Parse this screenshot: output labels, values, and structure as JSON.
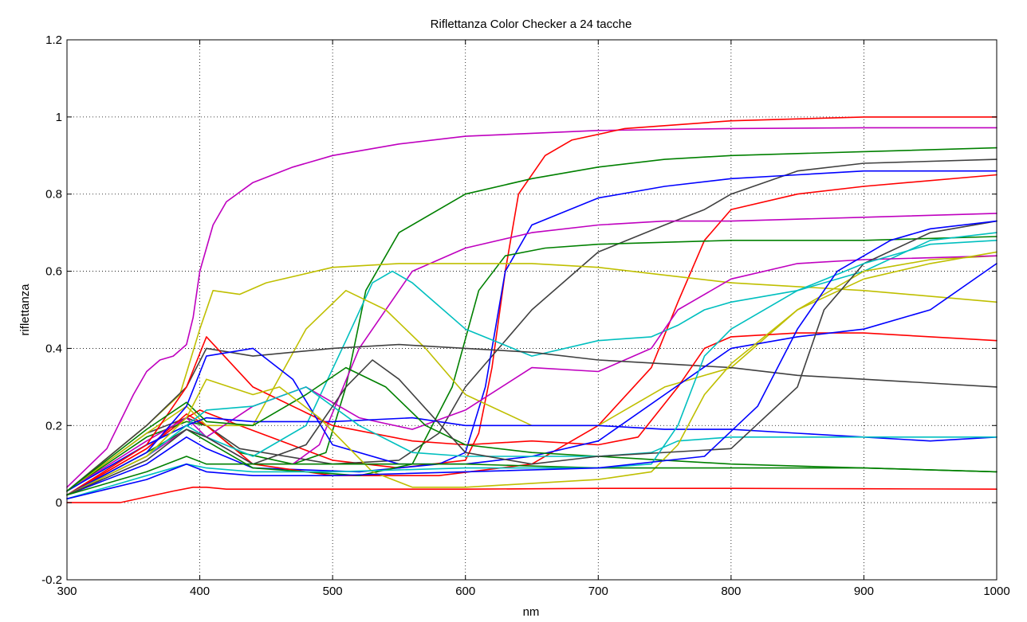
{
  "chart_data": {
    "type": "line",
    "title": "Riflettanza Color Checker a 24 tacche",
    "xlabel": "nm",
    "ylabel": "riflettanza",
    "xlim": [
      300,
      1000
    ],
    "ylim": [
      -0.2,
      1.2
    ],
    "xticks": [
      300,
      400,
      500,
      600,
      700,
      800,
      900,
      1000
    ],
    "yticks": [
      -0.2,
      0,
      0.2,
      0.4,
      0.6,
      0.8,
      1,
      1.2
    ],
    "xtick_labels": [
      "300",
      "400",
      "500",
      "600",
      "700",
      "800",
      "900",
      "1000"
    ],
    "ytick_labels": [
      "-0.2",
      "0",
      "0.2",
      "0.4",
      "0.6",
      "0.8",
      "1",
      "1.2"
    ],
    "grid": true,
    "legend": "none",
    "series": [
      {
        "color": "#bf00bf",
        "x": [
          300,
          330,
          350,
          360,
          370,
          380,
          390,
          395,
          400,
          410,
          420,
          440,
          470,
          500,
          550,
          600,
          700,
          800,
          900,
          1000
        ],
        "y": [
          0.04,
          0.14,
          0.28,
          0.34,
          0.37,
          0.38,
          0.41,
          0.48,
          0.6,
          0.72,
          0.78,
          0.83,
          0.87,
          0.9,
          0.93,
          0.95,
          0.965,
          0.97,
          0.972,
          0.972
        ]
      },
      {
        "color": "#ff0000",
        "x": [
          300,
          360,
          390,
          400,
          430,
          500,
          550,
          600,
          610,
          620,
          630,
          640,
          660,
          680,
          720,
          800,
          900,
          1000
        ],
        "y": [
          0.02,
          0.14,
          0.22,
          0.24,
          0.2,
          0.11,
          0.09,
          0.11,
          0.18,
          0.35,
          0.6,
          0.8,
          0.9,
          0.94,
          0.97,
          0.99,
          1.0,
          1.0
        ]
      },
      {
        "color": "#008000",
        "x": [
          300,
          360,
          390,
          405,
          430,
          470,
          495,
          510,
          525,
          550,
          600,
          650,
          700,
          750,
          800,
          900,
          1000
        ],
        "y": [
          0.03,
          0.17,
          0.21,
          0.2,
          0.13,
          0.1,
          0.13,
          0.3,
          0.55,
          0.7,
          0.8,
          0.84,
          0.87,
          0.89,
          0.9,
          0.91,
          0.92
        ]
      },
      {
        "color": "#404040",
        "x": [
          300,
          360,
          390,
          405,
          430,
          500,
          550,
          580,
          600,
          650,
          700,
          750,
          780,
          800,
          850,
          900,
          1000
        ],
        "y": [
          0.03,
          0.18,
          0.22,
          0.2,
          0.14,
          0.1,
          0.11,
          0.18,
          0.3,
          0.5,
          0.65,
          0.72,
          0.76,
          0.8,
          0.86,
          0.88,
          0.89
        ]
      },
      {
        "color": "#0000ff",
        "x": [
          300,
          360,
          390,
          405,
          440,
          520,
          580,
          600,
          615,
          630,
          650,
          700,
          750,
          800,
          850,
          900,
          1000
        ],
        "y": [
          0.02,
          0.1,
          0.17,
          0.14,
          0.09,
          0.08,
          0.1,
          0.13,
          0.3,
          0.6,
          0.72,
          0.79,
          0.82,
          0.84,
          0.85,
          0.86,
          0.86
        ]
      },
      {
        "color": "#ff0000",
        "x": [
          300,
          360,
          390,
          405,
          440,
          500,
          580,
          650,
          700,
          740,
          760,
          780,
          800,
          850,
          900,
          1000
        ],
        "y": [
          0.02,
          0.14,
          0.23,
          0.2,
          0.1,
          0.07,
          0.07,
          0.1,
          0.2,
          0.35,
          0.52,
          0.68,
          0.76,
          0.8,
          0.82,
          0.85
        ]
      },
      {
        "color": "#bf00bf",
        "x": [
          300,
          360,
          390,
          405,
          440,
          470,
          490,
          520,
          560,
          600,
          650,
          700,
          750,
          800,
          900,
          1000
        ],
        "y": [
          0.03,
          0.16,
          0.22,
          0.17,
          0.1,
          0.1,
          0.15,
          0.4,
          0.6,
          0.66,
          0.7,
          0.72,
          0.73,
          0.73,
          0.74,
          0.75
        ]
      },
      {
        "color": "#008000",
        "x": [
          300,
          360,
          390,
          405,
          440,
          520,
          560,
          590,
          610,
          630,
          660,
          700,
          800,
          900,
          1000
        ],
        "y": [
          0.02,
          0.13,
          0.19,
          0.16,
          0.09,
          0.07,
          0.1,
          0.3,
          0.55,
          0.64,
          0.66,
          0.67,
          0.68,
          0.68,
          0.69
        ]
      },
      {
        "color": "#bfbf00",
        "x": [
          300,
          360,
          385,
          400,
          410,
          430,
          450,
          500,
          550,
          600,
          650,
          700,
          750,
          800,
          900,
          1000
        ],
        "y": [
          0.03,
          0.2,
          0.28,
          0.45,
          0.55,
          0.54,
          0.57,
          0.61,
          0.62,
          0.62,
          0.62,
          0.61,
          0.59,
          0.57,
          0.55,
          0.52
        ]
      },
      {
        "color": "#00bfbf",
        "x": [
          300,
          360,
          390,
          405,
          440,
          480,
          510,
          530,
          545,
          560,
          600,
          650,
          700,
          740,
          760,
          780,
          800,
          850,
          900,
          950,
          1000
        ],
        "y": [
          0.03,
          0.15,
          0.2,
          0.17,
          0.12,
          0.2,
          0.42,
          0.57,
          0.6,
          0.57,
          0.45,
          0.38,
          0.42,
          0.43,
          0.46,
          0.5,
          0.52,
          0.55,
          0.6,
          0.68,
          0.7
        ]
      },
      {
        "color": "#bfbf00",
        "x": [
          300,
          360,
          390,
          405,
          440,
          480,
          510,
          540,
          570,
          600,
          650,
          700,
          750,
          800,
          850,
          900,
          950,
          1000
        ],
        "y": [
          0.03,
          0.18,
          0.25,
          0.2,
          0.2,
          0.45,
          0.55,
          0.5,
          0.4,
          0.28,
          0.2,
          0.2,
          0.3,
          0.35,
          0.5,
          0.6,
          0.63,
          0.64
        ]
      },
      {
        "color": "#bf00bf",
        "x": [
          300,
          360,
          390,
          405,
          440,
          480,
          520,
          560,
          600,
          650,
          700,
          740,
          760,
          800,
          850,
          900,
          1000
        ],
        "y": [
          0.02,
          0.12,
          0.19,
          0.17,
          0.25,
          0.3,
          0.22,
          0.19,
          0.24,
          0.35,
          0.34,
          0.4,
          0.5,
          0.58,
          0.62,
          0.63,
          0.64
        ]
      },
      {
        "color": "#0000ff",
        "x": [
          300,
          360,
          390,
          405,
          440,
          500,
          560,
          600,
          650,
          700,
          750,
          800,
          850,
          900,
          950,
          1000
        ],
        "y": [
          0.03,
          0.15,
          0.2,
          0.22,
          0.21,
          0.21,
          0.22,
          0.2,
          0.2,
          0.2,
          0.19,
          0.19,
          0.18,
          0.17,
          0.16,
          0.17
        ]
      },
      {
        "color": "#404040",
        "x": [
          300,
          360,
          390,
          405,
          440,
          500,
          550,
          600,
          650,
          700,
          750,
          800,
          850,
          900,
          950,
          1000
        ],
        "y": [
          0.03,
          0.2,
          0.3,
          0.4,
          0.38,
          0.4,
          0.41,
          0.4,
          0.39,
          0.37,
          0.36,
          0.35,
          0.33,
          0.32,
          0.31,
          0.3
        ]
      },
      {
        "color": "#ff0000",
        "x": [
          300,
          360,
          390,
          405,
          440,
          500,
          560,
          600,
          650,
          700,
          730,
          760,
          780,
          800,
          850,
          900,
          1000
        ],
        "y": [
          0.02,
          0.15,
          0.3,
          0.43,
          0.3,
          0.2,
          0.16,
          0.15,
          0.16,
          0.15,
          0.17,
          0.3,
          0.4,
          0.43,
          0.44,
          0.44,
          0.42
        ]
      },
      {
        "color": "#0000ff",
        "x": [
          300,
          360,
          390,
          405,
          440,
          470,
          500,
          550,
          600,
          650,
          700,
          750,
          800,
          850,
          900,
          950,
          1000
        ],
        "y": [
          0.02,
          0.13,
          0.25,
          0.38,
          0.4,
          0.32,
          0.15,
          0.1,
          0.1,
          0.12,
          0.16,
          0.28,
          0.4,
          0.43,
          0.45,
          0.5,
          0.62
        ]
      },
      {
        "color": "#008000",
        "x": [
          300,
          360,
          390,
          405,
          440,
          480,
          510,
          540,
          570,
          600,
          650,
          700,
          750,
          800,
          900,
          1000
        ],
        "y": [
          0.03,
          0.19,
          0.26,
          0.21,
          0.2,
          0.28,
          0.35,
          0.3,
          0.2,
          0.15,
          0.13,
          0.12,
          0.11,
          0.1,
          0.09,
          0.08
        ]
      },
      {
        "color": "#00bfbf",
        "x": [
          300,
          360,
          390,
          405,
          440,
          480,
          520,
          560,
          600,
          650,
          700,
          740,
          760,
          800,
          900,
          1000
        ],
        "y": [
          0.02,
          0.12,
          0.2,
          0.24,
          0.25,
          0.3,
          0.2,
          0.13,
          0.12,
          0.12,
          0.12,
          0.13,
          0.16,
          0.17,
          0.17,
          0.17
        ]
      },
      {
        "color": "#bfbf00",
        "x": [
          300,
          360,
          390,
          405,
          440,
          460,
          490,
          530,
          560,
          600,
          650,
          700,
          740,
          760,
          780,
          800,
          850,
          900,
          950,
          1000
        ],
        "y": [
          0.02,
          0.12,
          0.22,
          0.32,
          0.28,
          0.3,
          0.22,
          0.08,
          0.04,
          0.04,
          0.05,
          0.06,
          0.08,
          0.15,
          0.28,
          0.36,
          0.5,
          0.58,
          0.62,
          0.65
        ]
      },
      {
        "color": "#404040",
        "x": [
          300,
          360,
          390,
          405,
          440,
          480,
          510,
          530,
          550,
          600,
          650,
          700,
          800,
          850,
          870,
          900,
          950,
          1000
        ],
        "y": [
          0.02,
          0.11,
          0.19,
          0.17,
          0.1,
          0.15,
          0.3,
          0.37,
          0.32,
          0.13,
          0.1,
          0.12,
          0.14,
          0.3,
          0.5,
          0.62,
          0.7,
          0.73
        ]
      },
      {
        "color": "#008000",
        "x": [
          300,
          360,
          390,
          405,
          440,
          500,
          600,
          700,
          800,
          900,
          1000
        ],
        "y": [
          0.02,
          0.08,
          0.12,
          0.1,
          0.1,
          0.1,
          0.1,
          0.09,
          0.09,
          0.09,
          0.08
        ]
      },
      {
        "color": "#00bfbf",
        "x": [
          300,
          360,
          390,
          405,
          440,
          500,
          600,
          700,
          740,
          760,
          780,
          800,
          850,
          900,
          950,
          1000
        ],
        "y": [
          0.01,
          0.07,
          0.1,
          0.09,
          0.08,
          0.08,
          0.09,
          0.09,
          0.1,
          0.2,
          0.38,
          0.45,
          0.55,
          0.62,
          0.67,
          0.68
        ]
      },
      {
        "color": "#0000ff",
        "x": [
          300,
          360,
          390,
          405,
          440,
          500,
          600,
          700,
          780,
          820,
          850,
          880,
          920,
          950,
          1000
        ],
        "y": [
          0.01,
          0.06,
          0.1,
          0.08,
          0.07,
          0.07,
          0.08,
          0.09,
          0.12,
          0.25,
          0.45,
          0.6,
          0.68,
          0.71,
          0.73
        ]
      },
      {
        "color": "#ff0000",
        "x": [
          300,
          340,
          380,
          395,
          405,
          420,
          500,
          600,
          700,
          800,
          900,
          1000
        ],
        "y": [
          0.0,
          0.0,
          0.03,
          0.04,
          0.04,
          0.035,
          0.035,
          0.035,
          0.037,
          0.037,
          0.036,
          0.035
        ]
      }
    ]
  }
}
